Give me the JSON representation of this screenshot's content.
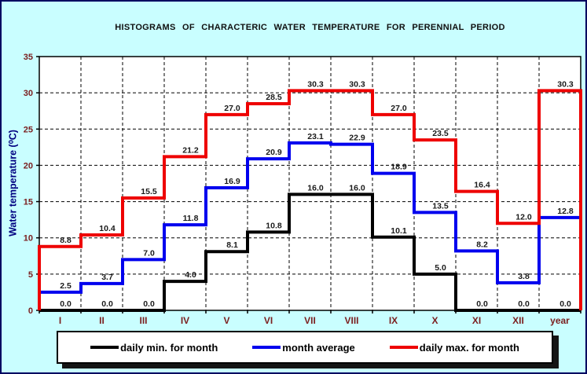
{
  "title": "HISTOGRAMS OF CHARACTERIC WATER TEMPERATURE FOR PERENNIAL PERIOD",
  "y_axis_label": "Water temperature (⁰C)",
  "chart_data": {
    "type": "line",
    "subtype": "step-histogram",
    "title": "HISTOGRAMS OF CHARACTERIC WATER TEMPERATURE FOR PERENNIAL PERIOD",
    "xlabel": "",
    "ylabel": "Water temperature (⁰C)",
    "ylim": [
      0,
      35
    ],
    "ytick_step": 5,
    "grid": true,
    "legend_position": "bottom",
    "categories": [
      "I",
      "II",
      "III",
      "IV",
      "V",
      "VI",
      "VII",
      "VIII",
      "IX",
      "X",
      "XI",
      "XII",
      "year"
    ],
    "series": [
      {
        "name": "daily min. for month",
        "color": "#000000",
        "values": [
          0.0,
          0.0,
          0.0,
          4.0,
          8.1,
          10.8,
          16.0,
          16.0,
          10.1,
          5.0,
          0.0,
          0.0,
          0.0
        ]
      },
      {
        "name": "month average",
        "color": "#0000ee",
        "values": [
          2.5,
          3.7,
          7.0,
          11.8,
          16.9,
          20.9,
          23.1,
          22.9,
          18.9,
          13.5,
          8.2,
          3.8,
          12.8
        ]
      },
      {
        "name": "daily max. for month",
        "color": "#ee0000",
        "values": [
          8.8,
          10.4,
          15.5,
          21.2,
          27.0,
          28.5,
          30.3,
          30.3,
          27.0,
          23.5,
          16.4,
          12.0,
          30.3
        ]
      }
    ],
    "colors": {
      "plot_bg": "#ffffff",
      "axis": "#000000",
      "gridline": "#000000",
      "tick_label": "#7b2020",
      "category_label": "#7b2020",
      "data_label": "#1a1a1a",
      "window_bg": "#c9feff",
      "window_border": "#000060",
      "title_text": "#101010",
      "y_axis_label_text": "#000080"
    }
  },
  "legend": {
    "items": [
      {
        "label": "daily min. for month"
      },
      {
        "label": "month average"
      },
      {
        "label": "daily max. for month"
      }
    ]
  }
}
